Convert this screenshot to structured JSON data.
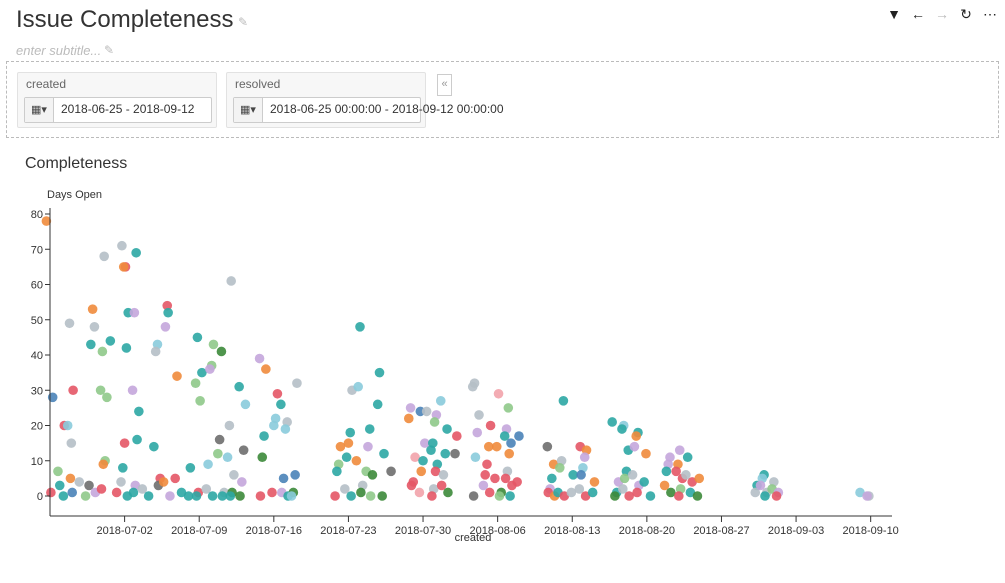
{
  "page": {
    "title": "Issue Completeness",
    "subtitle_placeholder": "enter subtitle..."
  },
  "toolbar": {
    "icons": [
      "filter-icon",
      "back-arrow-icon",
      "forward-arrow-icon",
      "refresh-icon",
      "more-icon"
    ]
  },
  "filters": [
    {
      "label": "created",
      "value": "2018-06-25 - 2018-09-12"
    },
    {
      "label": "resolved",
      "value": "2018-06-25 00:00:00 - 2018-09-12 00:00:00"
    }
  ],
  "collapse_label": "«",
  "chart_data": {
    "type": "scatter",
    "title": "Completeness",
    "xlabel": "created",
    "ylabel": "Days Open",
    "x_ticks": [
      "2018-07-02",
      "2018-07-09",
      "2018-07-16",
      "2018-07-23",
      "2018-07-30",
      "2018-08-06",
      "2018-08-13",
      "2018-08-20",
      "2018-08-27",
      "2018-09-03",
      "2018-09-10"
    ],
    "xlim": [
      "2018-06-25",
      "2018-09-12"
    ],
    "ylim": [
      0,
      80
    ],
    "y_ticks": [
      0,
      10,
      20,
      30,
      40,
      50,
      60,
      70,
      80
    ],
    "grid": false,
    "colors": [
      "#2ca7a4",
      "#e45766",
      "#f08b3c",
      "#c4a6db",
      "#b5bfc6",
      "#8fc98a",
      "#3c8a3a",
      "#4a83b8",
      "#8acbdc",
      "#6e6e6e",
      "#eab8c8",
      "#f2a3ab"
    ],
    "points": [
      [
        "2018-06-25",
        78,
        2
      ],
      [
        "2018-06-25",
        28,
        7
      ],
      [
        "2018-06-25",
        1,
        1
      ],
      [
        "2018-06-26",
        3,
        0
      ],
      [
        "2018-06-26",
        7,
        5
      ],
      [
        "2018-06-26",
        20,
        1
      ],
      [
        "2018-06-27",
        30,
        1
      ],
      [
        "2018-06-27",
        15,
        4
      ],
      [
        "2018-06-27",
        49,
        4
      ],
      [
        "2018-06-27",
        20,
        8
      ],
      [
        "2018-06-26",
        0,
        0
      ],
      [
        "2018-06-27",
        1,
        7
      ],
      [
        "2018-06-27",
        5,
        2
      ],
      [
        "2018-06-28",
        4,
        4
      ],
      [
        "2018-06-28",
        0,
        5
      ],
      [
        "2018-06-29",
        48,
        4
      ],
      [
        "2018-06-29",
        53,
        2
      ],
      [
        "2018-06-29",
        43,
        0
      ],
      [
        "2018-06-29",
        3,
        9
      ],
      [
        "2018-06-29",
        1,
        3
      ],
      [
        "2018-06-30",
        68,
        4
      ],
      [
        "2018-06-30",
        41,
        5
      ],
      [
        "2018-06-30",
        30,
        5
      ],
      [
        "2018-06-30",
        28,
        5
      ],
      [
        "2018-06-30",
        10,
        5
      ],
      [
        "2018-06-30",
        9,
        2
      ],
      [
        "2018-06-30",
        2,
        1
      ],
      [
        "2018-07-01",
        44,
        0
      ],
      [
        "2018-07-01",
        1,
        1
      ],
      [
        "2018-07-02",
        65,
        1
      ],
      [
        "2018-07-02",
        65,
        2
      ],
      [
        "2018-07-02",
        71,
        4
      ],
      [
        "2018-07-02",
        52,
        0
      ],
      [
        "2018-07-02",
        42,
        0
      ],
      [
        "2018-07-02",
        15,
        1
      ],
      [
        "2018-07-02",
        8,
        0
      ],
      [
        "2018-07-02",
        4,
        4
      ],
      [
        "2018-07-02",
        0,
        0
      ],
      [
        "2018-07-03",
        69,
        0
      ],
      [
        "2018-07-03",
        52,
        3
      ],
      [
        "2018-07-03",
        30,
        3
      ],
      [
        "2018-07-03",
        24,
        0
      ],
      [
        "2018-07-03",
        16,
        0
      ],
      [
        "2018-07-03",
        3,
        3
      ],
      [
        "2018-07-03",
        1,
        0
      ],
      [
        "2018-07-04",
        2,
        4
      ],
      [
        "2018-07-04",
        0,
        0
      ],
      [
        "2018-07-05",
        43,
        8
      ],
      [
        "2018-07-05",
        41,
        4
      ],
      [
        "2018-07-05",
        14,
        0
      ],
      [
        "2018-07-05",
        5,
        1
      ],
      [
        "2018-07-05",
        3,
        9
      ],
      [
        "2018-07-06",
        54,
        1
      ],
      [
        "2018-07-06",
        48,
        3
      ],
      [
        "2018-07-06",
        4,
        2
      ],
      [
        "2018-07-06",
        0,
        3
      ],
      [
        "2018-07-06",
        52,
        0
      ],
      [
        "2018-07-07",
        34,
        2
      ],
      [
        "2018-07-07",
        5,
        1
      ],
      [
        "2018-07-07",
        1,
        0
      ],
      [
        "2018-07-08",
        8,
        0
      ],
      [
        "2018-07-08",
        0,
        0
      ],
      [
        "2018-07-09",
        45,
        0
      ],
      [
        "2018-07-09",
        32,
        5
      ],
      [
        "2018-07-09",
        35,
        0
      ],
      [
        "2018-07-09",
        27,
        5
      ],
      [
        "2018-07-09",
        1,
        1
      ],
      [
        "2018-07-09",
        0,
        0
      ],
      [
        "2018-07-10",
        43,
        5
      ],
      [
        "2018-07-10",
        37,
        5
      ],
      [
        "2018-07-10",
        36,
        3
      ],
      [
        "2018-07-10",
        9,
        8
      ],
      [
        "2018-07-10",
        2,
        4
      ],
      [
        "2018-07-10",
        0,
        0
      ],
      [
        "2018-07-11",
        41,
        6
      ],
      [
        "2018-07-11",
        16,
        9
      ],
      [
        "2018-07-11",
        12,
        5
      ],
      [
        "2018-07-11",
        1,
        4
      ],
      [
        "2018-07-11",
        0,
        0
      ],
      [
        "2018-07-12",
        61,
        4
      ],
      [
        "2018-07-12",
        20,
        4
      ],
      [
        "2018-07-12",
        11,
        8
      ],
      [
        "2018-07-12",
        6,
        4
      ],
      [
        "2018-07-12",
        1,
        6
      ],
      [
        "2018-07-12",
        0,
        0
      ],
      [
        "2018-07-13",
        31,
        0
      ],
      [
        "2018-07-13",
        26,
        8
      ],
      [
        "2018-07-13",
        13,
        9
      ],
      [
        "2018-07-13",
        4,
        3
      ],
      [
        "2018-07-13",
        0,
        6
      ],
      [
        "2018-07-15",
        39,
        3
      ],
      [
        "2018-07-15",
        36,
        2
      ],
      [
        "2018-07-15",
        17,
        0
      ],
      [
        "2018-07-15",
        11,
        6
      ],
      [
        "2018-07-15",
        0,
        1
      ],
      [
        "2018-07-16",
        29,
        1
      ],
      [
        "2018-07-16",
        22,
        8
      ],
      [
        "2018-07-16",
        20,
        8
      ],
      [
        "2018-07-16",
        1,
        1
      ],
      [
        "2018-07-17",
        26,
        0
      ],
      [
        "2018-07-17",
        21,
        4
      ],
      [
        "2018-07-17",
        19,
        8
      ],
      [
        "2018-07-17",
        5,
        7
      ],
      [
        "2018-07-17",
        1,
        3
      ],
      [
        "2018-07-17",
        0,
        0
      ],
      [
        "2018-07-18",
        32,
        4
      ],
      [
        "2018-07-18",
        6,
        7
      ],
      [
        "2018-07-18",
        1,
        6
      ],
      [
        "2018-07-18",
        0,
        8
      ],
      [
        "2018-07-22",
        14,
        2
      ],
      [
        "2018-07-22",
        9,
        5
      ],
      [
        "2018-07-22",
        7,
        0
      ],
      [
        "2018-07-22",
        0,
        1
      ],
      [
        "2018-07-23",
        30,
        4
      ],
      [
        "2018-07-23",
        18,
        0
      ],
      [
        "2018-07-23",
        15,
        2
      ],
      [
        "2018-07-23",
        11,
        0
      ],
      [
        "2018-07-23",
        2,
        4
      ],
      [
        "2018-07-23",
        0,
        0
      ],
      [
        "2018-07-24",
        48,
        0
      ],
      [
        "2018-07-24",
        31,
        8
      ],
      [
        "2018-07-24",
        10,
        2
      ],
      [
        "2018-07-24",
        3,
        4
      ],
      [
        "2018-07-24",
        1,
        6
      ],
      [
        "2018-07-25",
        19,
        0
      ],
      [
        "2018-07-25",
        14,
        3
      ],
      [
        "2018-07-25",
        7,
        5
      ],
      [
        "2018-07-25",
        6,
        6
      ],
      [
        "2018-07-25",
        0,
        5
      ],
      [
        "2018-07-26",
        35,
        0
      ],
      [
        "2018-07-26",
        26,
        0
      ],
      [
        "2018-07-26",
        12,
        0
      ],
      [
        "2018-07-26",
        0,
        6
      ],
      [
        "2018-07-27",
        7,
        9
      ],
      [
        "2018-07-29",
        25,
        3
      ],
      [
        "2018-07-29",
        22,
        2
      ],
      [
        "2018-07-29",
        11,
        11
      ],
      [
        "2018-07-29",
        4,
        1
      ],
      [
        "2018-07-29",
        3,
        1
      ],
      [
        "2018-07-30",
        24,
        7
      ],
      [
        "2018-07-30",
        24,
        4
      ],
      [
        "2018-07-30",
        15,
        3
      ],
      [
        "2018-07-30",
        10,
        0
      ],
      [
        "2018-07-30",
        7,
        2
      ],
      [
        "2018-07-30",
        1,
        11
      ],
      [
        "2018-07-31",
        23,
        3
      ],
      [
        "2018-07-31",
        21,
        5
      ],
      [
        "2018-07-31",
        15,
        0
      ],
      [
        "2018-07-31",
        13,
        0
      ],
      [
        "2018-07-31",
        9,
        0
      ],
      [
        "2018-07-31",
        7,
        1
      ],
      [
        "2018-07-31",
        2,
        4
      ],
      [
        "2018-07-31",
        0,
        1
      ],
      [
        "2018-08-01",
        27,
        8
      ],
      [
        "2018-08-01",
        19,
        0
      ],
      [
        "2018-08-01",
        12,
        0
      ],
      [
        "2018-08-01",
        6,
        4
      ],
      [
        "2018-08-01",
        3,
        1
      ],
      [
        "2018-08-01",
        1,
        6
      ],
      [
        "2018-08-02",
        17,
        1
      ],
      [
        "2018-08-02",
        12,
        9
      ],
      [
        "2018-08-04",
        32,
        4
      ],
      [
        "2018-08-04",
        31,
        4
      ],
      [
        "2018-08-04",
        23,
        4
      ],
      [
        "2018-08-04",
        18,
        3
      ],
      [
        "2018-08-04",
        11,
        8
      ],
      [
        "2018-08-04",
        0,
        9
      ],
      [
        "2018-08-05",
        20,
        1
      ],
      [
        "2018-08-05",
        14,
        2
      ],
      [
        "2018-08-05",
        9,
        1
      ],
      [
        "2018-08-05",
        6,
        1
      ],
      [
        "2018-08-05",
        3,
        3
      ],
      [
        "2018-08-05",
        1,
        1
      ],
      [
        "2018-08-06",
        29,
        11
      ],
      [
        "2018-08-06",
        14,
        2
      ],
      [
        "2018-08-06",
        5,
        1
      ],
      [
        "2018-08-06",
        1,
        6
      ],
      [
        "2018-08-06",
        0,
        5
      ],
      [
        "2018-08-07",
        25,
        5
      ],
      [
        "2018-08-07",
        19,
        3
      ],
      [
        "2018-08-07",
        17,
        0
      ],
      [
        "2018-08-07",
        15,
        7
      ],
      [
        "2018-08-07",
        12,
        2
      ],
      [
        "2018-08-07",
        7,
        4
      ],
      [
        "2018-08-07",
        5,
        1
      ],
      [
        "2018-08-07",
        3,
        1
      ],
      [
        "2018-08-07",
        0,
        0
      ],
      [
        "2018-08-08",
        17,
        7
      ],
      [
        "2018-08-08",
        4,
        1
      ],
      [
        "2018-08-11",
        14,
        9
      ],
      [
        "2018-08-11",
        9,
        2
      ],
      [
        "2018-08-11",
        5,
        0
      ],
      [
        "2018-08-11",
        2,
        3
      ],
      [
        "2018-08-11",
        1,
        1
      ],
      [
        "2018-08-11",
        0,
        2
      ],
      [
        "2018-08-12",
        27,
        0
      ],
      [
        "2018-08-12",
        10,
        4
      ],
      [
        "2018-08-12",
        8,
        5
      ],
      [
        "2018-08-12",
        1,
        0
      ],
      [
        "2018-08-12",
        0,
        1
      ],
      [
        "2018-08-13",
        6,
        0
      ],
      [
        "2018-08-13",
        1,
        4
      ],
      [
        "2018-08-14",
        14,
        1
      ],
      [
        "2018-08-14",
        13,
        2
      ],
      [
        "2018-08-14",
        11,
        3
      ],
      [
        "2018-08-14",
        8,
        8
      ],
      [
        "2018-08-14",
        6,
        7
      ],
      [
        "2018-08-14",
        2,
        4
      ],
      [
        "2018-08-14",
        0,
        1
      ],
      [
        "2018-08-15",
        4,
        2
      ],
      [
        "2018-08-15",
        1,
        0
      ],
      [
        "2018-08-17",
        21,
        0
      ],
      [
        "2018-08-17",
        4,
        3
      ],
      [
        "2018-08-17",
        1,
        0
      ],
      [
        "2018-08-17",
        0,
        6
      ],
      [
        "2018-08-18",
        20,
        8
      ],
      [
        "2018-08-18",
        19,
        0
      ],
      [
        "2018-08-18",
        13,
        0
      ],
      [
        "2018-08-18",
        7,
        0
      ],
      [
        "2018-08-18",
        5,
        5
      ],
      [
        "2018-08-18",
        2,
        4
      ],
      [
        "2018-08-18",
        0,
        1
      ],
      [
        "2018-08-19",
        18,
        0
      ],
      [
        "2018-08-19",
        17,
        2
      ],
      [
        "2018-08-19",
        14,
        3
      ],
      [
        "2018-08-19",
        6,
        4
      ],
      [
        "2018-08-19",
        3,
        3
      ],
      [
        "2018-08-19",
        1,
        1
      ],
      [
        "2018-08-20",
        12,
        2
      ],
      [
        "2018-08-20",
        4,
        0
      ],
      [
        "2018-08-20",
        0,
        0
      ],
      [
        "2018-08-22",
        11,
        3
      ],
      [
        "2018-08-22",
        9,
        3
      ],
      [
        "2018-08-22",
        7,
        0
      ],
      [
        "2018-08-22",
        3,
        2
      ],
      [
        "2018-08-22",
        1,
        6
      ],
      [
        "2018-08-23",
        13,
        3
      ],
      [
        "2018-08-23",
        9,
        2
      ],
      [
        "2018-08-23",
        7,
        1
      ],
      [
        "2018-08-23",
        5,
        1
      ],
      [
        "2018-08-23",
        2,
        5
      ],
      [
        "2018-08-23",
        0,
        1
      ],
      [
        "2018-08-24",
        11,
        0
      ],
      [
        "2018-08-24",
        6,
        4
      ],
      [
        "2018-08-24",
        4,
        1
      ],
      [
        "2018-08-24",
        1,
        0
      ],
      [
        "2018-08-25",
        5,
        2
      ],
      [
        "2018-08-25",
        0,
        6
      ],
      [
        "2018-08-30",
        3,
        0
      ],
      [
        "2018-08-30",
        1,
        4
      ],
      [
        "2018-08-31",
        6,
        0
      ],
      [
        "2018-08-31",
        5,
        8
      ],
      [
        "2018-08-31",
        3,
        3
      ],
      [
        "2018-08-31",
        1,
        4
      ],
      [
        "2018-08-31",
        0,
        0
      ],
      [
        "2018-09-01",
        4,
        4
      ],
      [
        "2018-09-01",
        2,
        5
      ],
      [
        "2018-09-01",
        1,
        3
      ],
      [
        "2018-09-01",
        0,
        1
      ],
      [
        "2018-09-09",
        1,
        8
      ],
      [
        "2018-09-10",
        0,
        4
      ],
      [
        "2018-09-10",
        0,
        3
      ]
    ]
  }
}
